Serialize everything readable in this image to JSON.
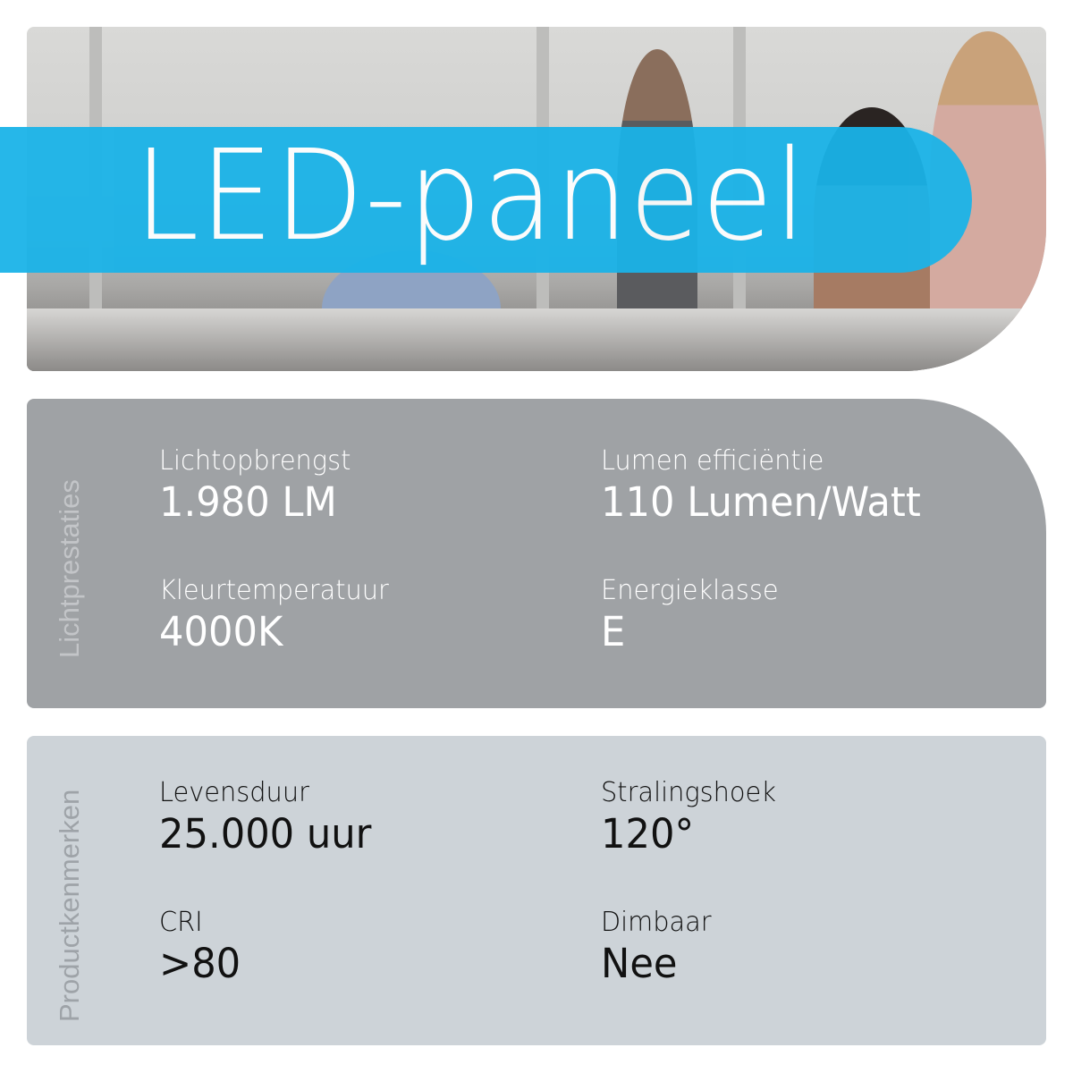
{
  "hero": {
    "title": "LED-paneel",
    "banner_color": "#1ab3e8"
  },
  "sections": [
    {
      "title": "Lichtprestaties",
      "background": "#9fa2a5",
      "items": [
        {
          "label": "Lichtopbrengst",
          "value": "1.980 LM"
        },
        {
          "label": "Lumen efficiëntie",
          "value": "110 Lumen/Watt"
        },
        {
          "label": "Kleurtemperatuur",
          "value": "4000K"
        },
        {
          "label": "Energieklasse",
          "value": "E"
        }
      ]
    },
    {
      "title": "Productkenmerken",
      "background": "#cdd3d8",
      "items": [
        {
          "label": "Levensduur",
          "value": "25.000 uur"
        },
        {
          "label": "Stralingshoek",
          "value": "120°"
        },
        {
          "label": "CRI",
          "value": ">80"
        },
        {
          "label": "Dimbaar",
          "value": "Nee"
        }
      ]
    }
  ]
}
